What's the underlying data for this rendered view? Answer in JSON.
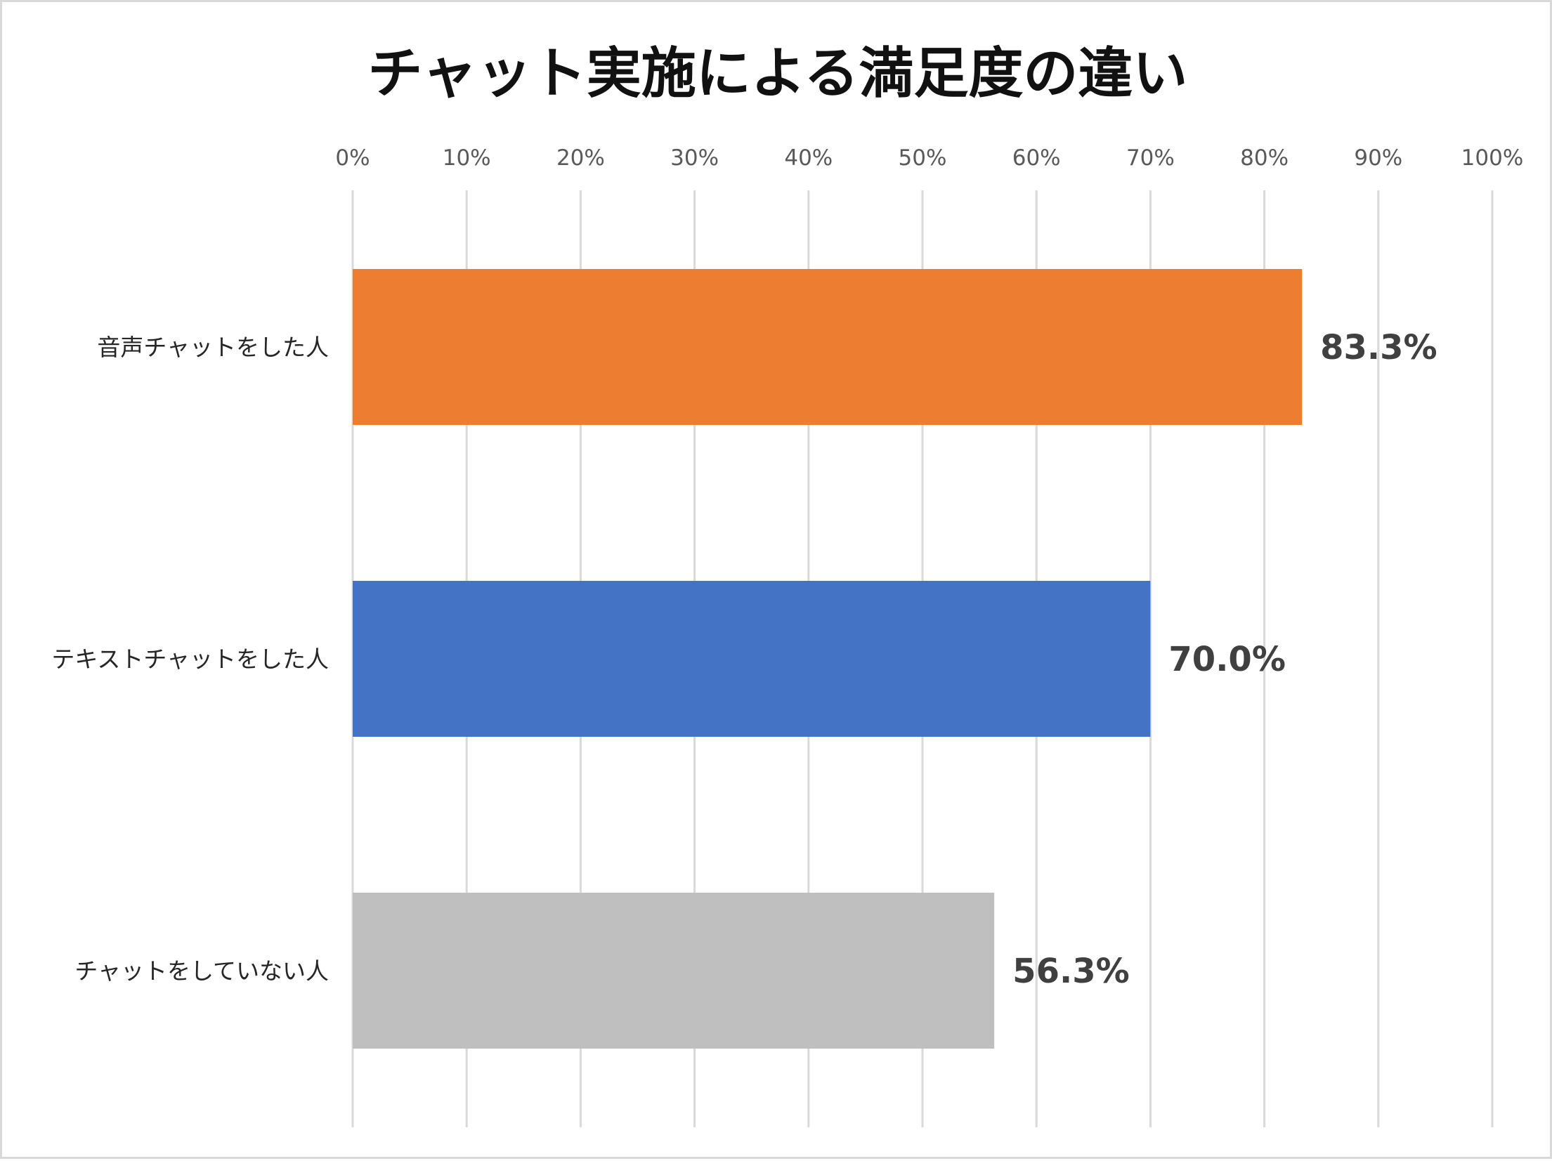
{
  "chart_data": {
    "type": "bar",
    "orientation": "horizontal",
    "title": "チャット実施による満足度の違い",
    "xlabel": "",
    "ylabel": "",
    "xlim": [
      0,
      100
    ],
    "x_ticks": [
      "0%",
      "10%",
      "20%",
      "30%",
      "40%",
      "50%",
      "60%",
      "70%",
      "80%",
      "90%",
      "100%"
    ],
    "tick_position": "top",
    "grid": true,
    "legend": "none",
    "categories": [
      "音声チャットをした人",
      "テキストチャットをした人",
      "チャットをしていない人"
    ],
    "values": [
      83.3,
      70.0,
      56.3
    ],
    "value_labels": [
      "83.3%",
      "70.0%",
      "56.3%"
    ],
    "bar_colors": [
      "#ED7D31",
      "#4472C4",
      "#BFBFBF"
    ]
  }
}
